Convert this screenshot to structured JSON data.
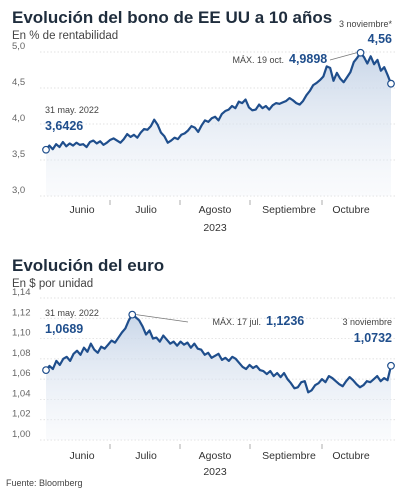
{
  "chart_data": [
    {
      "type": "area",
      "title": "Evolución del bono de EE UU a 10 años",
      "subtitle": "En % de rentabilidad",
      "xlabel": "2023",
      "ylabel": "",
      "ylim": [
        3.0,
        5.0
      ],
      "yticks": [
        "3,0",
        "3,5",
        "4,0",
        "4,5",
        "5,0"
      ],
      "ytick_values": [
        3.0,
        3.5,
        4.0,
        4.5,
        5.0
      ],
      "months": [
        "Junio",
        "Julio",
        "Agosto",
        "Septiembre",
        "Octubre"
      ],
      "grid": true,
      "color": "#1f4e8c",
      "series": [
        {
          "values": [
            3.6426,
            3.7,
            3.65,
            3.72,
            3.68,
            3.75,
            3.69,
            3.73,
            3.7,
            3.74,
            3.71,
            3.72,
            3.68,
            3.75,
            3.77,
            3.73,
            3.76,
            3.71,
            3.74,
            3.78,
            3.8,
            3.77,
            3.74,
            3.79,
            3.86,
            3.82,
            3.85,
            3.81,
            3.88,
            3.93,
            3.92,
            3.97,
            4.06,
            3.99,
            3.88,
            3.83,
            3.74,
            3.77,
            3.81,
            3.79,
            3.85,
            3.87,
            3.91,
            3.97,
            3.95,
            3.89,
            3.98,
            4.05,
            4.03,
            4.08,
            4.1,
            4.05,
            4.14,
            4.18,
            4.2,
            4.25,
            4.22,
            4.31,
            4.29,
            4.34,
            4.23,
            4.19,
            4.2,
            4.27,
            4.22,
            4.25,
            4.2,
            4.26,
            4.29,
            4.28,
            4.3,
            4.32,
            4.36,
            4.33,
            4.29,
            4.27,
            4.32,
            4.4,
            4.46,
            4.54,
            4.57,
            4.61,
            4.66,
            4.8,
            4.78,
            4.6,
            4.71,
            4.63,
            4.58,
            4.65,
            4.72,
            4.86,
            4.92,
            4.9898,
            4.93,
            4.84,
            4.94,
            4.83,
            4.89,
            4.74,
            4.79,
            4.68,
            4.56
          ]
        }
      ],
      "annotations": [
        {
          "label": "31 may. 2022",
          "value": "3,6426"
        },
        {
          "label": "MÁX. 19 oct.",
          "value": "4,9898"
        },
        {
          "label": "3 noviembre*",
          "value": "4,56"
        }
      ]
    },
    {
      "type": "area",
      "title": "Evolución del euro",
      "subtitle": "En $ por unidad",
      "xlabel": "2023",
      "ylabel": "",
      "ylim": [
        1.0,
        1.14
      ],
      "yticks": [
        "1,00",
        "1,02",
        "1,04",
        "1,06",
        "1,08",
        "1,10",
        "1,12",
        "1,14"
      ],
      "ytick_values": [
        1.0,
        1.02,
        1.04,
        1.06,
        1.08,
        1.1,
        1.12,
        1.14
      ],
      "months": [
        "Junio",
        "Julio",
        "Agosto",
        "Septiembre",
        "Octubre"
      ],
      "grid": true,
      "color": "#1f4e8c",
      "series": [
        {
          "values": [
            1.0689,
            1.073,
            1.07,
            1.078,
            1.074,
            1.08,
            1.082,
            1.078,
            1.085,
            1.088,
            1.084,
            1.091,
            1.087,
            1.095,
            1.089,
            1.086,
            1.092,
            1.09,
            1.094,
            1.098,
            1.096,
            1.101,
            1.106,
            1.11,
            1.118,
            1.1236,
            1.121,
            1.118,
            1.112,
            1.104,
            1.108,
            1.1,
            1.101,
            1.097,
            1.103,
            1.099,
            1.095,
            1.097,
            1.093,
            1.097,
            1.094,
            1.096,
            1.091,
            1.095,
            1.09,
            1.089,
            1.084,
            1.086,
            1.081,
            1.083,
            1.085,
            1.079,
            1.081,
            1.078,
            1.082,
            1.08,
            1.076,
            1.072,
            1.07,
            1.074,
            1.071,
            1.073,
            1.069,
            1.068,
            1.065,
            1.068,
            1.063,
            1.066,
            1.062,
            1.066,
            1.06,
            1.056,
            1.051,
            1.052,
            1.057,
            1.058,
            1.047,
            1.049,
            1.054,
            1.056,
            1.06,
            1.057,
            1.063,
            1.061,
            1.058,
            1.055,
            1.053,
            1.058,
            1.062,
            1.059,
            1.055,
            1.052,
            1.054,
            1.058,
            1.057,
            1.06,
            1.063,
            1.058,
            1.061,
            1.059,
            1.0732
          ]
        }
      ],
      "annotations": [
        {
          "label": "31 may. 2022",
          "value": "1,0689"
        },
        {
          "label": "MÁX. 17 jul.",
          "value": "1,1236"
        },
        {
          "label": "3 noviembre",
          "value": "1,0732"
        }
      ]
    }
  ],
  "source": "Fuente: Bloomberg"
}
